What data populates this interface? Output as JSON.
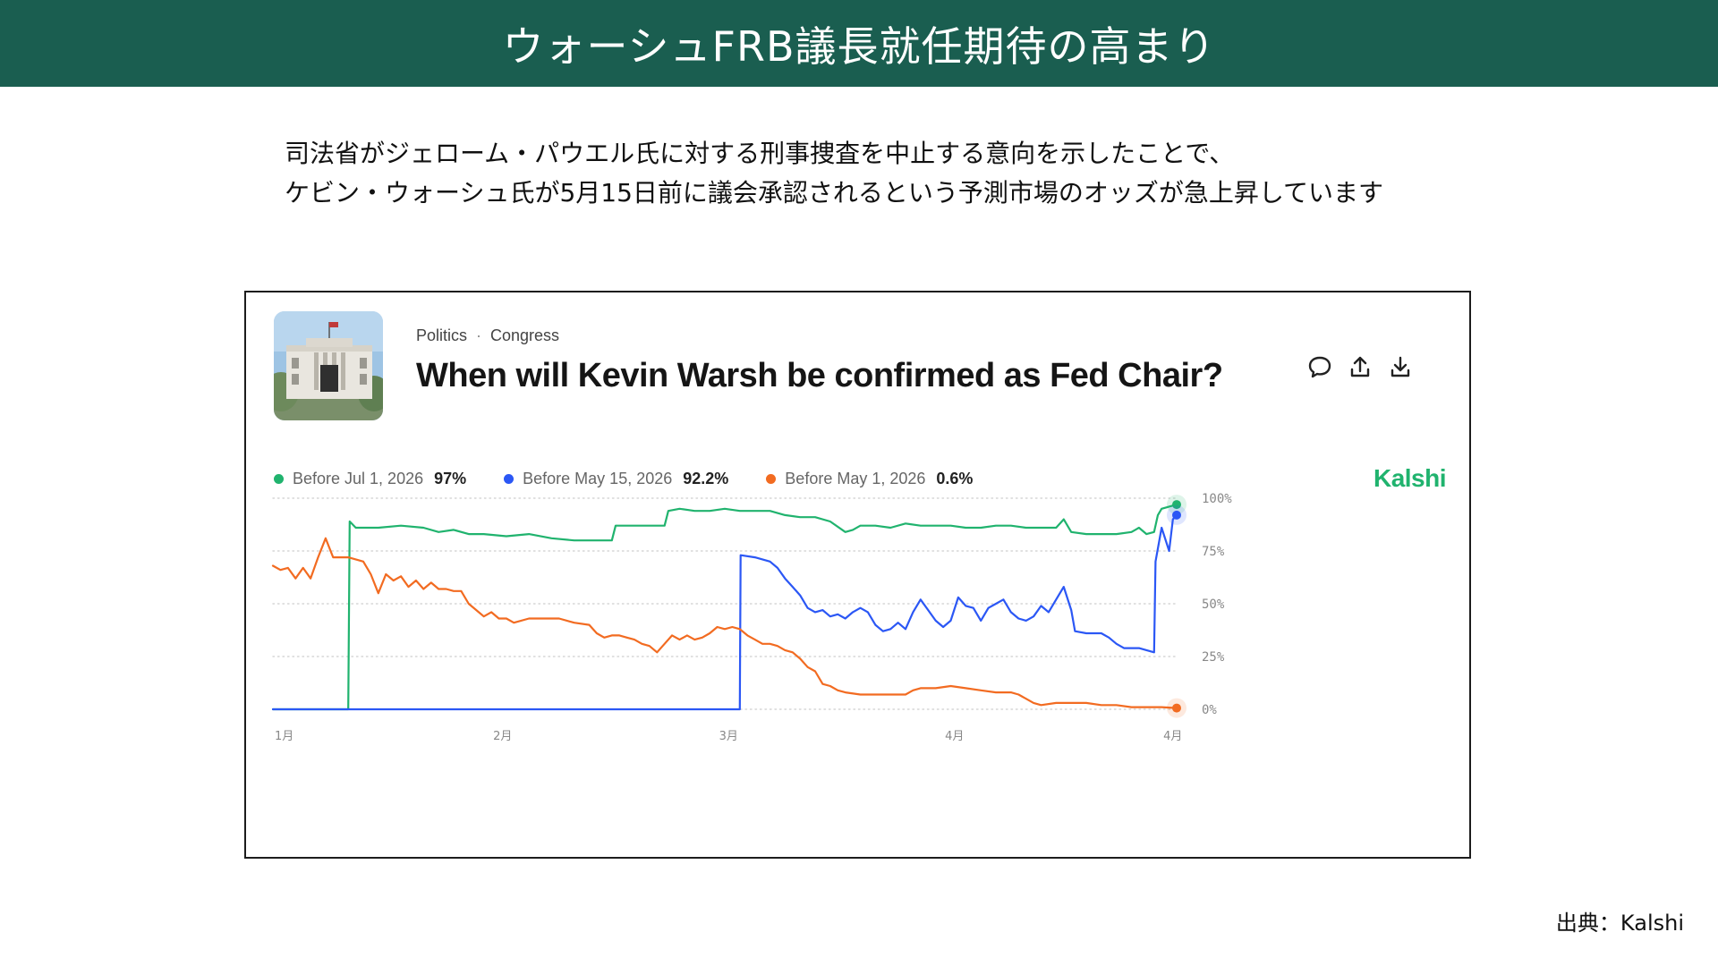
{
  "header": {
    "title": "ウォーシュFRB議長就任期待の高まり"
  },
  "intro": {
    "line1": "司法省がジェローム・パウエル氏に対する刑事捜査を中止する意向を示したことで、",
    "line2": "ケビン・ウォーシュ氏が5月15日前に議会承認されるという予測市場のオッズが急上昇しています"
  },
  "card": {
    "category": "Politics",
    "subcategory": "Congress",
    "question": "When will Kevin Warsh be confirmed as Fed Chair?",
    "brand": "Kalshi",
    "icons": {
      "comment": "comment-icon",
      "share": "share-icon",
      "download": "download-icon"
    }
  },
  "source": "出典：Kalshi",
  "chart_data": {
    "type": "line",
    "x_labels": [
      "1月",
      "2月",
      "3月",
      "4月",
      "4月"
    ],
    "x_label_positions": [
      0,
      29,
      59,
      89,
      118
    ],
    "xlim": [
      0,
      120
    ],
    "ylim": [
      0,
      100
    ],
    "y_ticks": [
      100,
      75,
      50,
      25,
      0
    ],
    "y_tick_labels": [
      "100%",
      "75%",
      "50%",
      "25%",
      "0%"
    ],
    "grid": true,
    "legend_position": "top-left",
    "series": [
      {
        "name": "Before Jul 1, 2026",
        "value_label": "97%",
        "color": "#20b36e",
        "points": [
          [
            0,
            0
          ],
          [
            10,
            0
          ],
          [
            10.2,
            89
          ],
          [
            11,
            86
          ],
          [
            14,
            86
          ],
          [
            17,
            87
          ],
          [
            20,
            86
          ],
          [
            22,
            84
          ],
          [
            24,
            85
          ],
          [
            26,
            83
          ],
          [
            28,
            83
          ],
          [
            31,
            82
          ],
          [
            34,
            83
          ],
          [
            37,
            81
          ],
          [
            40,
            80
          ],
          [
            45,
            80
          ],
          [
            45.5,
            87
          ],
          [
            47,
            87
          ],
          [
            52,
            87
          ],
          [
            52.5,
            94
          ],
          [
            54,
            95
          ],
          [
            56,
            94
          ],
          [
            58,
            94
          ],
          [
            60,
            95
          ],
          [
            62,
            94
          ],
          [
            64,
            94
          ],
          [
            66,
            94
          ],
          [
            68,
            92
          ],
          [
            70,
            91
          ],
          [
            72,
            91
          ],
          [
            74,
            89
          ],
          [
            76,
            84
          ],
          [
            77,
            85
          ],
          [
            78,
            87
          ],
          [
            80,
            87
          ],
          [
            82,
            86
          ],
          [
            84,
            88
          ],
          [
            86,
            87
          ],
          [
            88,
            87
          ],
          [
            90,
            87
          ],
          [
            92,
            86
          ],
          [
            94,
            86
          ],
          [
            96,
            87
          ],
          [
            98,
            87
          ],
          [
            100,
            86
          ],
          [
            102,
            86
          ],
          [
            104,
            86
          ],
          [
            105,
            90
          ],
          [
            106,
            84
          ],
          [
            108,
            83
          ],
          [
            110,
            83
          ],
          [
            112,
            83
          ],
          [
            114,
            84
          ],
          [
            115,
            86
          ],
          [
            116,
            83
          ],
          [
            117,
            84
          ],
          [
            117.5,
            92
          ],
          [
            118,
            95
          ],
          [
            119,
            96
          ],
          [
            120,
            97
          ]
        ]
      },
      {
        "name": "Before May 15, 2026",
        "value_label": "92.2%",
        "color": "#2b57f5",
        "points": [
          [
            0,
            0
          ],
          [
            62,
            0
          ],
          [
            62.1,
            73
          ],
          [
            64,
            72
          ],
          [
            66,
            70
          ],
          [
            67,
            67
          ],
          [
            68,
            62
          ],
          [
            69,
            58
          ],
          [
            70,
            54
          ],
          [
            71,
            48
          ],
          [
            72,
            46
          ],
          [
            73,
            47
          ],
          [
            74,
            44
          ],
          [
            75,
            45
          ],
          [
            76,
            43
          ],
          [
            77,
            46
          ],
          [
            78,
            48
          ],
          [
            79,
            46
          ],
          [
            80,
            40
          ],
          [
            81,
            37
          ],
          [
            82,
            38
          ],
          [
            83,
            41
          ],
          [
            84,
            38
          ],
          [
            85,
            46
          ],
          [
            86,
            52
          ],
          [
            87,
            47
          ],
          [
            88,
            42
          ],
          [
            89,
            39
          ],
          [
            90,
            42
          ],
          [
            91,
            53
          ],
          [
            92,
            49
          ],
          [
            93,
            48
          ],
          [
            94,
            42
          ],
          [
            95,
            48
          ],
          [
            96,
            50
          ],
          [
            97,
            52
          ],
          [
            98,
            46
          ],
          [
            99,
            43
          ],
          [
            100,
            42
          ],
          [
            101,
            44
          ],
          [
            102,
            49
          ],
          [
            103,
            46
          ],
          [
            104,
            52
          ],
          [
            105,
            58
          ],
          [
            106,
            47
          ],
          [
            106.5,
            37
          ],
          [
            108,
            36
          ],
          [
            110,
            36
          ],
          [
            111,
            34
          ],
          [
            112,
            31
          ],
          [
            113,
            29
          ],
          [
            114,
            29
          ],
          [
            115,
            29
          ],
          [
            116,
            28
          ],
          [
            117,
            27
          ],
          [
            117.2,
            70
          ],
          [
            118,
            86
          ],
          [
            119,
            75
          ],
          [
            119.5,
            90
          ],
          [
            120,
            92
          ]
        ]
      },
      {
        "name": "Before May 1, 2026",
        "value_label": "0.6%",
        "color": "#f26b21",
        "points": [
          [
            0,
            68
          ],
          [
            1,
            66
          ],
          [
            2,
            67
          ],
          [
            3,
            62
          ],
          [
            4,
            67
          ],
          [
            5,
            62
          ],
          [
            6,
            72
          ],
          [
            7,
            81
          ],
          [
            8,
            72
          ],
          [
            10,
            72
          ],
          [
            11,
            71
          ],
          [
            12,
            70
          ],
          [
            13,
            64
          ],
          [
            14,
            55
          ],
          [
            15,
            64
          ],
          [
            16,
            61
          ],
          [
            17,
            63
          ],
          [
            18,
            58
          ],
          [
            19,
            61
          ],
          [
            20,
            57
          ],
          [
            21,
            60
          ],
          [
            22,
            57
          ],
          [
            23,
            57
          ],
          [
            24,
            56
          ],
          [
            25,
            56
          ],
          [
            26,
            50
          ],
          [
            27,
            47
          ],
          [
            28,
            44
          ],
          [
            29,
            46
          ],
          [
            30,
            43
          ],
          [
            31,
            43
          ],
          [
            32,
            41
          ],
          [
            34,
            43
          ],
          [
            36,
            43
          ],
          [
            38,
            43
          ],
          [
            40,
            41
          ],
          [
            42,
            40
          ],
          [
            43,
            36
          ],
          [
            44,
            34
          ],
          [
            45,
            35
          ],
          [
            46,
            35
          ],
          [
            47,
            34
          ],
          [
            48,
            33
          ],
          [
            49,
            31
          ],
          [
            50,
            30
          ],
          [
            51,
            27
          ],
          [
            52,
            31
          ],
          [
            53,
            35
          ],
          [
            54,
            33
          ],
          [
            55,
            35
          ],
          [
            56,
            33
          ],
          [
            57,
            34
          ],
          [
            58,
            36
          ],
          [
            59,
            39
          ],
          [
            60,
            38
          ],
          [
            61,
            39
          ],
          [
            62,
            38
          ],
          [
            63,
            35
          ],
          [
            64,
            33
          ],
          [
            65,
            31
          ],
          [
            66,
            31
          ],
          [
            67,
            30
          ],
          [
            68,
            28
          ],
          [
            69,
            27
          ],
          [
            70,
            24
          ],
          [
            71,
            20
          ],
          [
            72,
            18
          ],
          [
            73,
            12
          ],
          [
            74,
            11
          ],
          [
            75,
            9
          ],
          [
            76,
            8
          ],
          [
            78,
            7
          ],
          [
            80,
            7
          ],
          [
            82,
            7
          ],
          [
            84,
            7
          ],
          [
            85,
            9
          ],
          [
            86,
            10
          ],
          [
            88,
            10
          ],
          [
            90,
            11
          ],
          [
            92,
            10
          ],
          [
            94,
            9
          ],
          [
            96,
            8
          ],
          [
            98,
            8
          ],
          [
            99,
            7
          ],
          [
            100,
            5
          ],
          [
            101,
            3
          ],
          [
            102,
            2
          ],
          [
            104,
            3
          ],
          [
            106,
            3
          ],
          [
            108,
            3
          ],
          [
            110,
            2
          ],
          [
            112,
            2
          ],
          [
            114,
            1
          ],
          [
            116,
            1
          ],
          [
            118,
            1
          ],
          [
            120,
            0.6
          ]
        ]
      }
    ]
  }
}
